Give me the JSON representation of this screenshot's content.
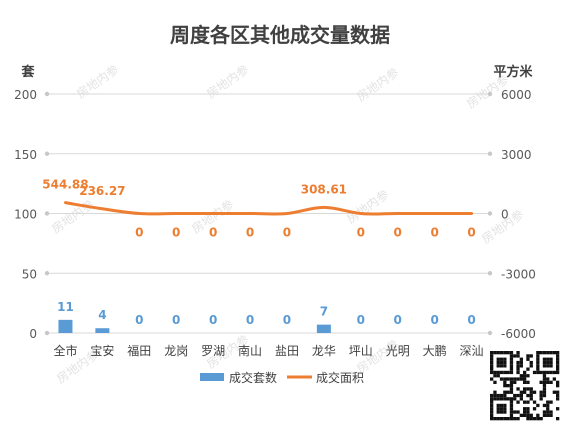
{
  "chart_data": {
    "type": "bar",
    "title": "周度各区其他成交量数据",
    "y_left_label": "套",
    "y_right_label": "平方米",
    "categories": [
      "全市",
      "宝安",
      "福田",
      "龙岗",
      "罗湖",
      "南山",
      "盐田",
      "龙华",
      "坪山",
      "光明",
      "大鹏",
      "深汕"
    ],
    "y_left_ticks": [
      "200",
      "150",
      "100",
      "50",
      "0"
    ],
    "y_right_ticks": [
      "6000",
      "3000",
      "0",
      "-3000",
      "-6000"
    ],
    "ylim_left": [
      0,
      200
    ],
    "ylim_right": [
      -6000,
      6000
    ],
    "series": [
      {
        "name": "成交套数",
        "type": "bar",
        "axis": "left",
        "color": "#5b9bd5",
        "values": [
          11,
          4,
          0,
          0,
          0,
          0,
          0,
          7,
          0,
          0,
          0,
          0
        ],
        "labels": [
          "11",
          "4",
          "0",
          "0",
          "0",
          "0",
          "0",
          "7",
          "0",
          "0",
          "0",
          "0"
        ]
      },
      {
        "name": "成交面积",
        "type": "line",
        "axis": "right",
        "color": "#ed7d31",
        "values": [
          544.88,
          236.27,
          0,
          0,
          0,
          0,
          0,
          308.61,
          0,
          0,
          0,
          0
        ],
        "labels": [
          "544.88",
          "236.27",
          "0",
          "0",
          "0",
          "0",
          "0",
          "308.61",
          "0",
          "0",
          "0",
          "0"
        ]
      }
    ],
    "legend_position": "bottom",
    "grid": true
  },
  "watermark": "房地内参",
  "colors": {
    "title": "#404040",
    "axis_text": "#595959",
    "grid": "#d9d9d9"
  }
}
